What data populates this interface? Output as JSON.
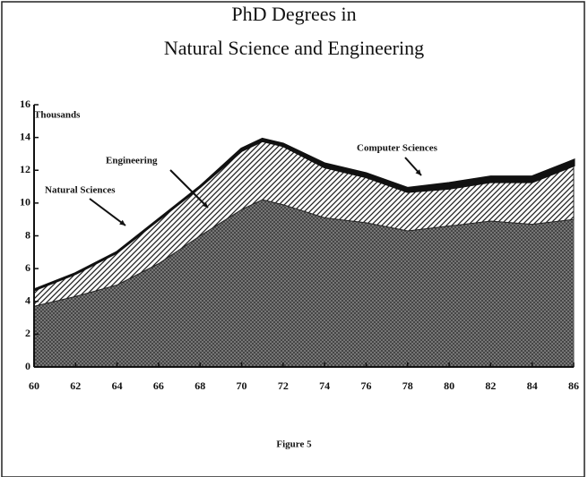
{
  "chart_data": {
    "type": "stacked_area",
    "title_lines": [
      "PhD Degrees in",
      "Natural Science and Engineering"
    ],
    "y_label": "Thousands",
    "caption": "Figure 5",
    "x": [
      60,
      62,
      64,
      66,
      68,
      70,
      71,
      72,
      74,
      76,
      78,
      80,
      82,
      84,
      86
    ],
    "series": [
      {
        "name": "Natural Sciences",
        "color": "#4a4a4a",
        "values": [
          3.7,
          4.3,
          5.0,
          6.3,
          8.0,
          9.6,
          10.2,
          9.9,
          9.1,
          8.8,
          8.3,
          8.6,
          8.9,
          8.7,
          9.0
        ]
      },
      {
        "name": "Engineering",
        "color": "#222222",
        "values": [
          1.0,
          1.4,
          2.0,
          2.7,
          3.0,
          3.6,
          3.6,
          3.6,
          3.1,
          2.8,
          2.4,
          2.3,
          2.4,
          2.6,
          3.3
        ]
      },
      {
        "name": "Computer Sciences",
        "color": "#111111",
        "values": [
          0,
          0,
          0,
          0,
          0,
          0.1,
          0.1,
          0.1,
          0.2,
          0.2,
          0.2,
          0.3,
          0.3,
          0.3,
          0.3
        ]
      }
    ],
    "xlim": [
      60,
      86
    ],
    "xticks": [
      60,
      62,
      64,
      66,
      68,
      70,
      72,
      74,
      76,
      78,
      80,
      82,
      84,
      86
    ],
    "ylim": [
      0,
      16
    ],
    "yticks": [
      0,
      2,
      4,
      6,
      8,
      10,
      12,
      14,
      16
    ]
  }
}
